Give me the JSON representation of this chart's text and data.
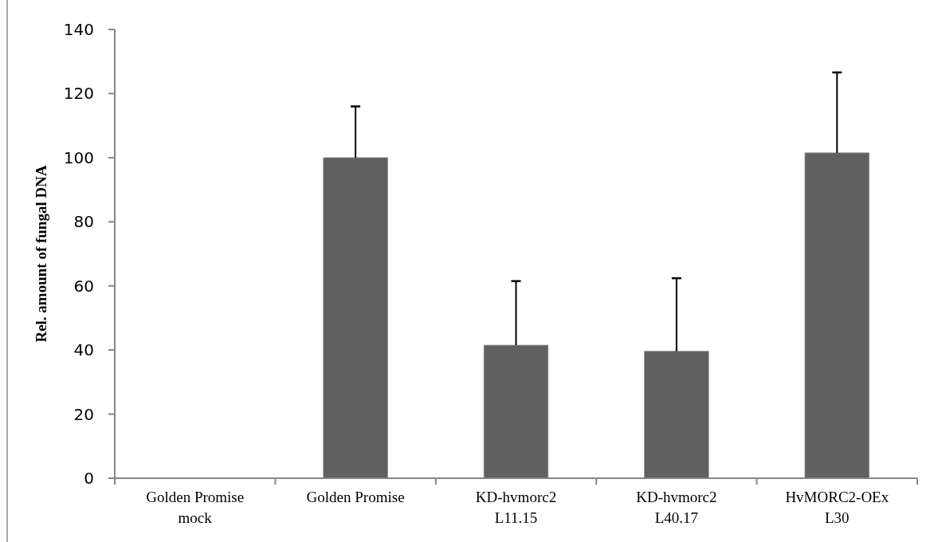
{
  "chart_data": {
    "type": "bar",
    "ylabel": "Rel. amount of fungal DNA",
    "categories": [
      "Golden Promise\nmock",
      "Golden Promise",
      "KD-hvmorc2\nL11.15",
      "KD-hvmorc2\nL40.17",
      "HvMORC2-OEx\nL30"
    ],
    "values": [
      0,
      100,
      41.5,
      39.6,
      101.5
    ],
    "errors": [
      null,
      [
        100,
        116
      ],
      [
        41.5,
        61.5
      ],
      [
        39.6,
        62.4
      ],
      [
        101.5,
        126.6
      ]
    ],
    "color": "#606060",
    "ylim": [
      0,
      140
    ],
    "yticks": [
      0,
      20,
      40,
      60,
      80,
      100,
      120,
      140
    ],
    "grid": false
  }
}
